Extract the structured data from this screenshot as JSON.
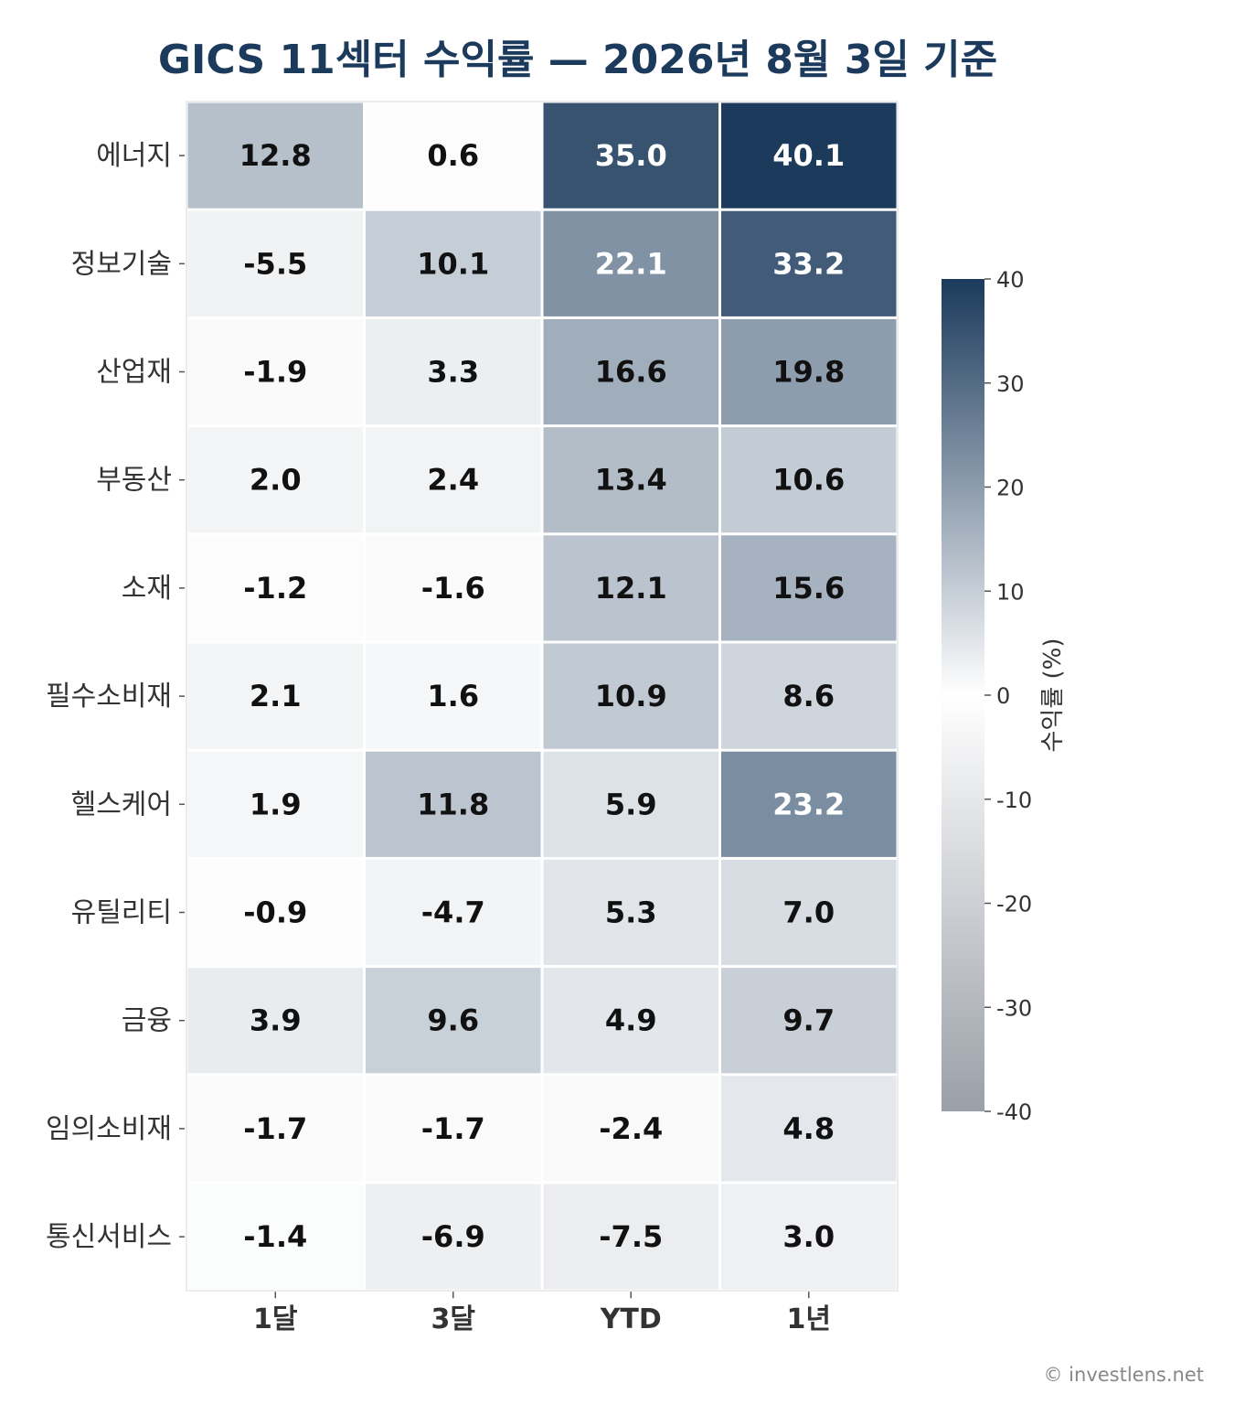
{
  "chart_data": {
    "type": "heatmap",
    "title": "GICS 11섹터 수익률 — 2026년 8월 3일 기준",
    "columns": [
      "1달",
      "3달",
      "YTD",
      "1년"
    ],
    "rows": [
      "에너지",
      "정보기술",
      "산업재",
      "부동산",
      "소재",
      "필수소비재",
      "헬스케어",
      "유틸리티",
      "금융",
      "임의소비재",
      "통신서비스"
    ],
    "values": [
      [
        12.8,
        0.6,
        35.0,
        40.1
      ],
      [
        -5.5,
        10.1,
        22.1,
        33.2
      ],
      [
        -1.9,
        3.3,
        16.6,
        19.8
      ],
      [
        2.0,
        2.4,
        13.4,
        10.6
      ],
      [
        -1.2,
        -1.6,
        12.1,
        15.6
      ],
      [
        2.1,
        1.6,
        10.9,
        8.6
      ],
      [
        1.9,
        11.8,
        5.9,
        23.2
      ],
      [
        -0.9,
        -4.7,
        5.3,
        7.0
      ],
      [
        3.9,
        9.6,
        4.9,
        9.7
      ],
      [
        -1.7,
        -1.7,
        -2.4,
        4.8
      ],
      [
        -1.4,
        -6.9,
        -7.5,
        3.0
      ]
    ],
    "value_labels": [
      [
        "12.8",
        "0.6",
        "35.0",
        "40.1"
      ],
      [
        "-5.5",
        "10.1",
        "22.1",
        "33.2"
      ],
      [
        "-1.9",
        "3.3",
        "16.6",
        "19.8"
      ],
      [
        "2.0",
        "2.4",
        "13.4",
        "10.6"
      ],
      [
        "-1.2",
        "-1.6",
        "12.1",
        "15.6"
      ],
      [
        "2.1",
        "1.6",
        "10.9",
        "8.6"
      ],
      [
        "1.9",
        "11.8",
        "5.9",
        "23.2"
      ],
      [
        "-0.9",
        "-4.7",
        "5.3",
        "7.0"
      ],
      [
        "3.9",
        "9.6",
        "4.9",
        "9.7"
      ],
      [
        "-1.7",
        "-1.7",
        "-2.4",
        "4.8"
      ],
      [
        "-1.4",
        "-6.9",
        "-7.5",
        "3.0"
      ]
    ],
    "colorbar": {
      "label": "수익률 (%)",
      "range": [
        -40,
        40
      ],
      "ticks": [
        40,
        30,
        20,
        10,
        0,
        -10,
        -20,
        -30,
        -40
      ],
      "tick_labels": [
        "40",
        "30",
        "20",
        "10",
        "0",
        "-10",
        "-20",
        "-30",
        "-40"
      ],
      "color_max": "#1b3a5c",
      "color_mid": "#ffffff",
      "color_min": "#9aa0a8"
    },
    "grid": false
  },
  "footer": {
    "source": "© investlens.net"
  }
}
